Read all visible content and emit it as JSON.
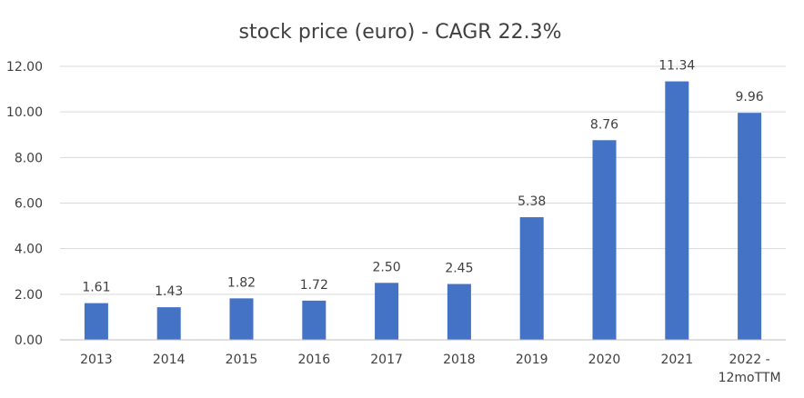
{
  "chart_data": {
    "type": "bar",
    "title": "stock price (euro) - CAGR 22.3%",
    "xlabel": "",
    "ylabel": "",
    "categories": [
      "2013",
      "2014",
      "2015",
      "2016",
      "2017",
      "2018",
      "2019",
      "2020",
      "2021",
      "2022 -\n12moTTM"
    ],
    "values": [
      1.61,
      1.43,
      1.82,
      1.72,
      2.5,
      2.45,
      5.38,
      8.76,
      11.34,
      9.96
    ],
    "value_labels": [
      "1.61",
      "1.43",
      "1.82",
      "1.72",
      "2.50",
      "2.45",
      "5.38",
      "8.76",
      "11.34",
      "9.96"
    ],
    "ylim": [
      0,
      12
    ],
    "y_ticks": [
      "0.00",
      "2.00",
      "4.00",
      "6.00",
      "8.00",
      "10.00",
      "12.00"
    ],
    "grid": true,
    "legend": "none",
    "bar_color": "#4472C4"
  }
}
